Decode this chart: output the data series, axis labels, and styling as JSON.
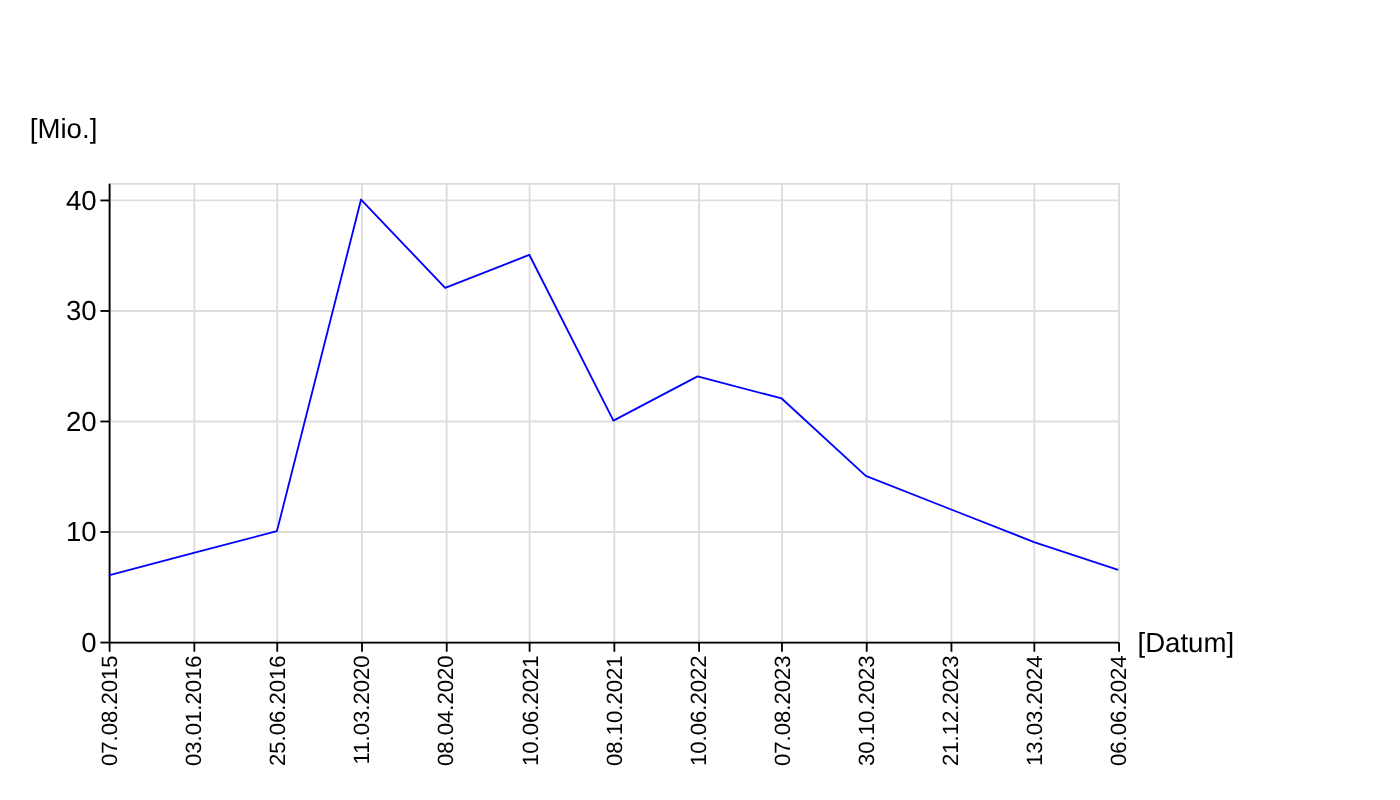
{
  "chart_data": {
    "type": "line",
    "xlabel": "[Datum]",
    "ylabel": "[Mio.]",
    "categories": [
      "07.08.2015",
      "03.01.2016",
      "25.06.2016",
      "11.03.2020",
      "08.04.2020",
      "10.06.2021",
      "08.10.2021",
      "10.06.2022",
      "07.08.2023",
      "30.10.2023",
      "21.12.2023",
      "13.03.2024",
      "06.06.2024"
    ],
    "values": [
      6,
      8,
      10,
      40,
      32,
      35,
      20,
      24,
      22,
      15,
      12,
      9,
      6.5
    ],
    "color": "#0000ff",
    "ylim": [
      0,
      41.5
    ],
    "yticks": [
      0,
      10,
      20,
      30,
      40
    ],
    "grid": true,
    "marker": "none"
  }
}
